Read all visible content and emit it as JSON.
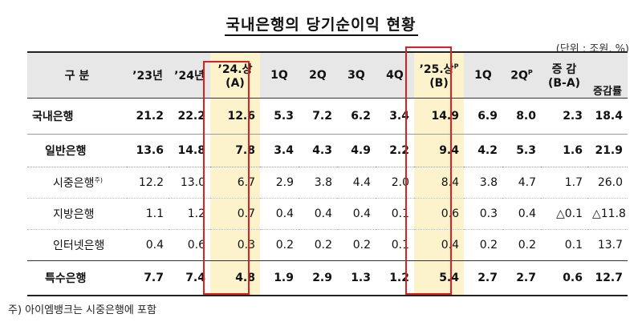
{
  "title": "국내은행의 당기순이익 현황",
  "unit": "(단위 : 조원, %)",
  "headers": {
    "category": "구 분",
    "y23": "’23년",
    "y24": "’24년",
    "h24_line1": "’24.상",
    "h24_line2": "(A)",
    "q1": "1Q",
    "q2": "2Q",
    "q3": "3Q",
    "q4": "4Q",
    "h25_line1": "’25.상",
    "h25_sup": "P",
    "h25_line2": "(B)",
    "q1b": "1Q",
    "q2b": "2Q",
    "q2b_sup": "P",
    "diff_line1": "증 감",
    "diff_line2": "(B-A)",
    "rate": "증감률"
  },
  "rows": [
    {
      "label": "국내은행",
      "v": [
        "21.2",
        "22.2",
        "12.6",
        "5.3",
        "7.2",
        "6.2",
        "3.4",
        "14.9",
        "6.9",
        "8.0",
        "2.3",
        "18.4"
      ]
    },
    {
      "label": "일반은행",
      "v": [
        "13.6",
        "14.8",
        "7.8",
        "3.4",
        "4.3",
        "4.9",
        "2.2",
        "9.4",
        "4.2",
        "5.3",
        "1.6",
        "21.9"
      ]
    },
    {
      "label": "시중은행",
      "note": "주)",
      "v": [
        "12.2",
        "13.0",
        "6.7",
        "2.9",
        "3.8",
        "4.4",
        "2.0",
        "8.4",
        "3.8",
        "4.7",
        "1.7",
        "26.0"
      ]
    },
    {
      "label": "지방은행",
      "v": [
        "1.1",
        "1.2",
        "0.7",
        "0.4",
        "0.4",
        "0.4",
        "0.1",
        "0.6",
        "0.3",
        "0.4",
        "△0.1",
        "△11.8"
      ]
    },
    {
      "label": "인터넷은행",
      "v": [
        "0.4",
        "0.6",
        "0.3",
        "0.2",
        "0.2",
        "0.2",
        "0.1",
        "0.4",
        "0.2",
        "0.2",
        "0.1",
        "13.7"
      ]
    },
    {
      "label": "특수은행",
      "v": [
        "7.7",
        "7.4",
        "4.8",
        "1.9",
        "2.9",
        "1.3",
        "1.2",
        "5.4",
        "2.7",
        "2.7",
        "0.6",
        "12.7"
      ]
    }
  ],
  "footnote": "주) 아이엠뱅크는 시중은행에 포함",
  "colors": {
    "highlight_fill": "#fcf3cc",
    "highlight_border": "#e02020",
    "header_fill": "#e7e7e7"
  }
}
